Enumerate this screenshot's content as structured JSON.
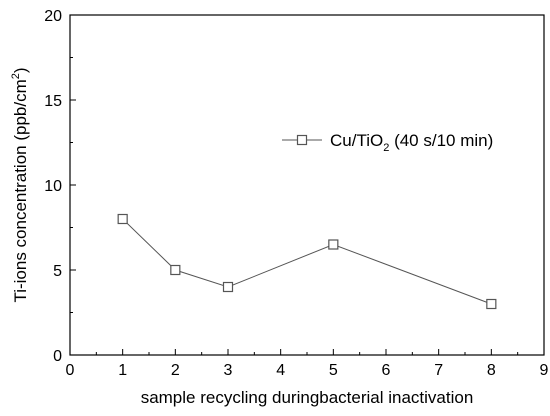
{
  "chart_data": {
    "type": "line",
    "xlabel": "sample recycling duringbacterial inactivation",
    "ylabel": "Ti-ions concentration (ppb/cm",
    "ylabel_superscript": "2",
    "ylabel_suffix": ")",
    "xlim": [
      0,
      9
    ],
    "ylim": [
      0,
      20
    ],
    "x_ticks": [
      0,
      1,
      2,
      3,
      4,
      5,
      6,
      7,
      8,
      9
    ],
    "y_ticks": [
      0,
      5,
      10,
      15,
      20
    ],
    "grid": false,
    "legend_position": "upper-right",
    "series": [
      {
        "name": "Cu/TiO",
        "name_subscript": "2",
        "name_suffix": " (40 s/10 min)",
        "marker": "open-square",
        "color": "#555555",
        "x": [
          1,
          2,
          3,
          5,
          8
        ],
        "y": [
          8,
          5,
          4,
          6.5,
          3
        ]
      }
    ]
  }
}
